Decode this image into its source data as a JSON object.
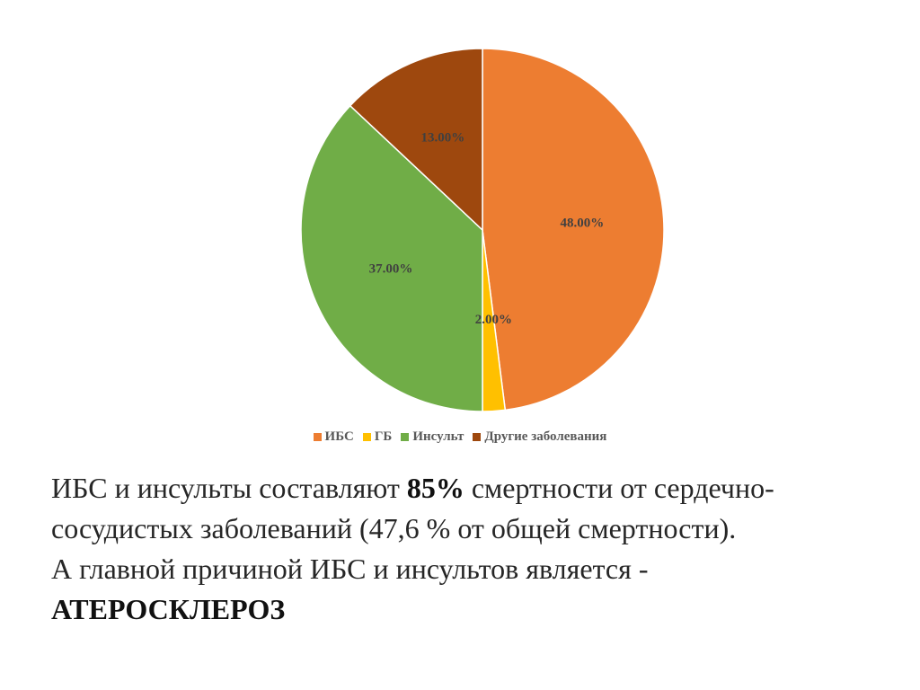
{
  "chart_data": {
    "type": "pie",
    "categories": [
      "ИБС",
      "ГБ",
      "Инсульт",
      "Другие заболевания"
    ],
    "values": [
      48,
      2,
      37,
      13
    ],
    "data_labels": [
      "48.00%",
      "2.00%",
      "37.00%",
      "13.00%"
    ],
    "colors": [
      "#ED7D31",
      "#FFC000",
      "#70AD47",
      "#9E480E"
    ],
    "start_angle": "12 o'clock",
    "direction": "clockwise",
    "legend_position": "bottom"
  },
  "caption": {
    "line1_pre": "ИБС и инсульты составляют ",
    "line1_bold": "85%",
    "line1_post": " смертности от сердечно-",
    "line2": "сосудистых заболеваний (47,6 % от общей смертности).",
    "line3": "А главной причиной ИБС и инсультов является -",
    "line4_bold": "АТЕРОСКЛЕРОЗ"
  }
}
